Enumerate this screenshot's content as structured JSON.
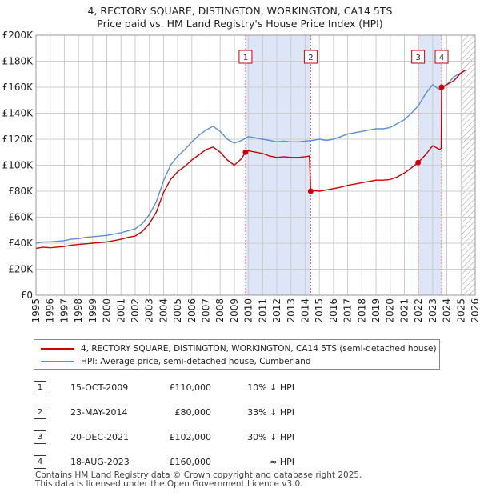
{
  "title": {
    "line1": "4, RECTORY SQUARE, DISTINGTON, WORKINGTON, CA14 5TS",
    "line2": "Price paid vs. HM Land Registry's House Price Index (HPI)"
  },
  "legend": {
    "property": "4, RECTORY SQUARE, DISTINGTON, WORKINGTON, CA14 5TS (semi-detached house)",
    "hpi": "HPI: Average price, semi-detached house, Cumberland"
  },
  "colors": {
    "property": "#cc0000",
    "hpi": "#5b8ed6",
    "shade": "#dde6f7",
    "marker_line": "#e06060",
    "grid": "#cccccc"
  },
  "sales": [
    {
      "num": "1",
      "date": "15-OCT-2009",
      "price": "£110,000",
      "hpi": "10% ↓ HPI"
    },
    {
      "num": "2",
      "date": "23-MAY-2014",
      "price": "£80,000",
      "hpi": "33% ↓ HPI"
    },
    {
      "num": "3",
      "date": "20-DEC-2021",
      "price": "£102,000",
      "hpi": "30% ↓ HPI"
    },
    {
      "num": "4",
      "date": "18-AUG-2023",
      "price": "£160,000",
      "hpi": "≈ HPI"
    }
  ],
  "footer": {
    "line1": "Contains HM Land Registry data © Crown copyright and database right 2025.",
    "line2": "This data is licensed under the Open Government Licence v3.0."
  },
  "chart_data": {
    "type": "line",
    "title": "Price paid vs. HM Land Registry's House Price Index (HPI)",
    "xlim": [
      1995,
      2026
    ],
    "ylim": [
      0,
      200000
    ],
    "x_ticks": [
      "1995",
      "1996",
      "1997",
      "1998",
      "1999",
      "2000",
      "2001",
      "2002",
      "2003",
      "2004",
      "2005",
      "2006",
      "2007",
      "2008",
      "2009",
      "2010",
      "2011",
      "2012",
      "2013",
      "2014",
      "2015",
      "2016",
      "2017",
      "2018",
      "2019",
      "2020",
      "2021",
      "2022",
      "2023",
      "2024",
      "2025",
      "2026"
    ],
    "y_ticks": [
      {
        "value": 0,
        "label": "£0"
      },
      {
        "value": 20000,
        "label": "£20K"
      },
      {
        "value": 40000,
        "label": "£40K"
      },
      {
        "value": 60000,
        "label": "£60K"
      },
      {
        "value": 80000,
        "label": "£80K"
      },
      {
        "value": 100000,
        "label": "£100K"
      },
      {
        "value": 120000,
        "label": "£120K"
      },
      {
        "value": 140000,
        "label": "£140K"
      },
      {
        "value": 160000,
        "label": "£160K"
      },
      {
        "value": 180000,
        "label": "£180K"
      },
      {
        "value": 200000,
        "label": "£200K"
      }
    ],
    "shaded_periods": [
      [
        2009.79,
        2014.39
      ],
      [
        2021.97,
        2023.63
      ]
    ],
    "future_hatch_from": 2025.0,
    "sale_markers": [
      {
        "label": "1",
        "x": 2009.79,
        "y": 110000
      },
      {
        "label": "2",
        "x": 2014.39,
        "y": 80000
      },
      {
        "label": "3",
        "x": 2021.97,
        "y": 102000
      },
      {
        "label": "4",
        "x": 2023.63,
        "y": 160000
      }
    ],
    "series": [
      {
        "name": "HPI: Average price, semi-detached house, Cumberland",
        "x": [
          1995.0,
          1995.5,
          1996.0,
          1996.5,
          1997.0,
          1997.5,
          1998.0,
          1998.5,
          1999.0,
          1999.5,
          2000.0,
          2000.5,
          2001.0,
          2001.5,
          2002.0,
          2002.5,
          2003.0,
          2003.5,
          2004.0,
          2004.5,
          2005.0,
          2005.5,
          2006.0,
          2006.5,
          2007.0,
          2007.5,
          2008.0,
          2008.5,
          2009.0,
          2009.5,
          2010.0,
          2010.5,
          2011.0,
          2011.5,
          2012.0,
          2012.5,
          2013.0,
          2013.5,
          2014.0,
          2014.5,
          2015.0,
          2015.5,
          2016.0,
          2016.5,
          2017.0,
          2017.5,
          2018.0,
          2018.5,
          2019.0,
          2019.5,
          2020.0,
          2020.5,
          2021.0,
          2021.5,
          2022.0,
          2022.5,
          2023.0,
          2023.5,
          2024.0,
          2024.5,
          2025.0,
          2025.3
        ],
        "values": [
          40000,
          41000,
          41000,
          41500,
          42000,
          43000,
          43500,
          44500,
          45000,
          45500,
          46000,
          47000,
          48000,
          49500,
          51000,
          55000,
          62000,
          72000,
          88000,
          100000,
          107000,
          112000,
          118000,
          123000,
          127000,
          130000,
          126000,
          120000,
          117000,
          119000,
          122000,
          121000,
          120000,
          119000,
          118000,
          118500,
          118000,
          118000,
          118500,
          119000,
          120000,
          119000,
          120000,
          122000,
          124000,
          125000,
          126000,
          127000,
          128000,
          128000,
          129000,
          132000,
          135000,
          140000,
          146000,
          155000,
          162000,
          158000,
          162000,
          168000,
          171000,
          173000
        ]
      },
      {
        "name": "4, RECTORY SQUARE, DISTINGTON, WORKINGTON, CA14 5TS (semi-detached house)",
        "x": [
          1995.0,
          1995.5,
          1996.0,
          1996.5,
          1997.0,
          1997.5,
          1998.0,
          1998.5,
          1999.0,
          1999.5,
          2000.0,
          2000.5,
          2001.0,
          2001.5,
          2002.0,
          2002.5,
          2003.0,
          2003.5,
          2004.0,
          2004.5,
          2005.0,
          2005.5,
          2006.0,
          2006.5,
          2007.0,
          2007.5,
          2008.0,
          2008.5,
          2009.0,
          2009.5,
          2009.79,
          2010.0,
          2010.5,
          2011.0,
          2011.5,
          2012.0,
          2012.5,
          2013.0,
          2013.5,
          2014.0,
          2014.3,
          2014.39,
          2014.5,
          2015.0,
          2015.5,
          2016.0,
          2016.5,
          2017.0,
          2017.5,
          2018.0,
          2018.5,
          2019.0,
          2019.5,
          2020.0,
          2020.5,
          2021.0,
          2021.5,
          2021.97,
          2022.5,
          2023.0,
          2023.5,
          2023.6,
          2023.63,
          2024.0,
          2024.5,
          2025.0,
          2025.3
        ],
        "values": [
          36000,
          37000,
          36500,
          37000,
          37500,
          38500,
          39000,
          39500,
          40000,
          40500,
          41000,
          42000,
          43000,
          44500,
          45500,
          49000,
          55000,
          64000,
          79000,
          89000,
          95000,
          99000,
          104000,
          108000,
          112000,
          114000,
          110000,
          104000,
          100000,
          105000,
          110000,
          111000,
          110000,
          109000,
          107000,
          106000,
          106500,
          106000,
          106000,
          106500,
          107000,
          80000,
          80500,
          80000,
          81000,
          82000,
          83000,
          84500,
          85500,
          86500,
          87500,
          88500,
          88500,
          89000,
          91000,
          94000,
          98000,
          102000,
          108000,
          115000,
          112000,
          113000,
          160000,
          162000,
          165000,
          171000,
          173000
        ]
      }
    ]
  }
}
